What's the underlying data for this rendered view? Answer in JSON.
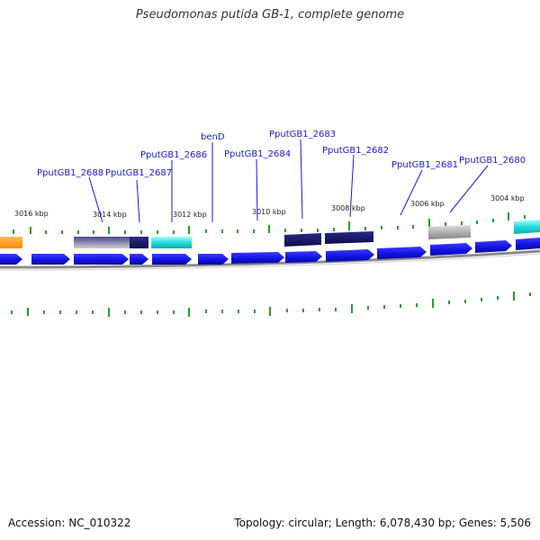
{
  "title": "Pseudomonas putida GB-1, complete genome",
  "footer": {
    "accession": "Accession: NC_010322",
    "summary": "Topology: circular; Length: 6,078,430 bp; Genes: 5,506"
  },
  "scale_labels": [
    "3016 kbp",
    "3014 kbp",
    "3012 kbp",
    "3010 kbp",
    "3008 kbp",
    "3006 kbp",
    "3004 kbp"
  ],
  "gene_labels": [
    "PputGB1_2688",
    "PputGB1_2687",
    "PputGB1_2686",
    "benD",
    "PputGB1_2684",
    "PputGB1_2683",
    "PputGB1_2682",
    "PputGB1_2681",
    "PputGB1_2680"
  ],
  "colors": {
    "cds": "#1a1aee",
    "label": "#1a1acc",
    "tick": "#2a9a2a",
    "backbone": "#8a8a8a",
    "orange": "#ff8c00",
    "cyan": "#22dddd",
    "navy": "#141464",
    "grey": "#a8a8a8"
  }
}
